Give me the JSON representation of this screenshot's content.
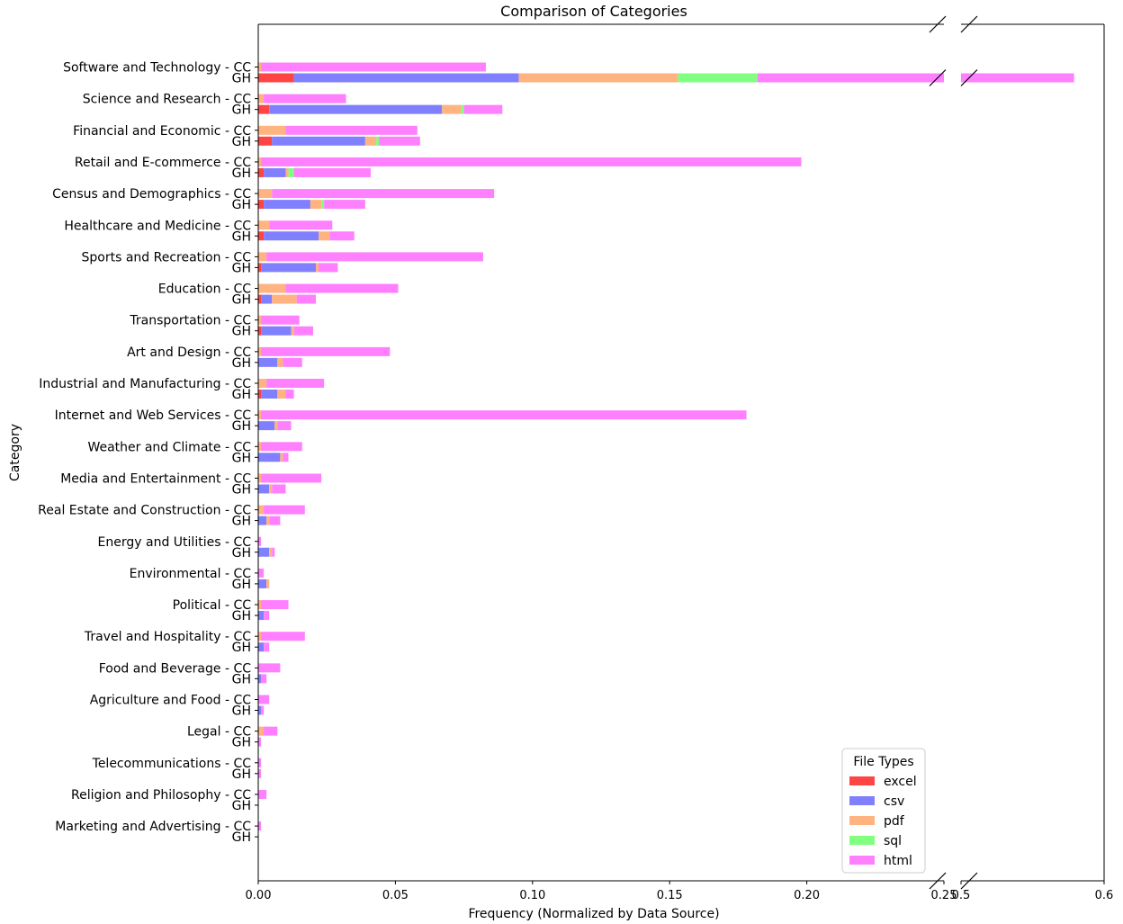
{
  "chart_data": {
    "type": "bar",
    "orientation": "horizontal",
    "stacked": true,
    "title": "Comparison of Categories",
    "xlabel": "Frequency (Normalized by Data Source)",
    "ylabel": "Category",
    "broken_x_axis": true,
    "xlim_left": [
      0,
      0.25
    ],
    "xlim_right": [
      0.5,
      0.6
    ],
    "xticks_left": [
      "0.00",
      "0.05",
      "0.10",
      "0.15",
      "0.20",
      "0.25"
    ],
    "xticks_right": [
      "0.5",
      "0.6"
    ],
    "legend": {
      "title": "File Types",
      "position": "lower-right"
    },
    "sources": [
      "CC",
      "GH"
    ],
    "series": [
      {
        "name": "excel",
        "color": "#ff4444"
      },
      {
        "name": "csv",
        "color": "#8080ff"
      },
      {
        "name": "pdf",
        "color": "#ffb380"
      },
      {
        "name": "sql",
        "color": "#80ff80"
      },
      {
        "name": "html",
        "color": "#ff80ff"
      }
    ],
    "categories": [
      {
        "name": "Software and Technology",
        "CC": [
          0,
          0,
          0.001,
          0,
          0.082
        ],
        "GH": [
          0.013,
          0.082,
          0.058,
          0.029,
          0.397
        ]
      },
      {
        "name": "Science and Research",
        "CC": [
          0,
          0,
          0.002,
          0,
          0.03
        ],
        "GH": [
          0.004,
          0.063,
          0.007,
          0.001,
          0.014
        ]
      },
      {
        "name": "Financial and Economic",
        "CC": [
          0,
          0,
          0.01,
          0,
          0.048
        ],
        "GH": [
          0.005,
          0.034,
          0.004,
          0.001,
          0.015
        ]
      },
      {
        "name": "Retail and E-commerce",
        "CC": [
          0,
          0,
          0.001,
          0,
          0.197
        ],
        "GH": [
          0.002,
          0.008,
          0.001,
          0.002,
          0.028
        ]
      },
      {
        "name": "Census and Demographics",
        "CC": [
          0,
          0,
          0.005,
          0,
          0.081
        ],
        "GH": [
          0.002,
          0.017,
          0.004,
          0.001,
          0.015
        ]
      },
      {
        "name": "Healthcare and Medicine",
        "CC": [
          0,
          0,
          0.004,
          0,
          0.023
        ],
        "GH": [
          0.002,
          0.02,
          0.004,
          0,
          0.009
        ]
      },
      {
        "name": "Sports and Recreation",
        "CC": [
          0,
          0,
          0.003,
          0,
          0.079
        ],
        "GH": [
          0.001,
          0.02,
          0.001,
          0,
          0.007
        ]
      },
      {
        "name": "Education",
        "CC": [
          0,
          0,
          0.01,
          0,
          0.041
        ],
        "GH": [
          0.001,
          0.004,
          0.009,
          0,
          0.007
        ]
      },
      {
        "name": "Transportation",
        "CC": [
          0,
          0,
          0.001,
          0,
          0.014
        ],
        "GH": [
          0.001,
          0.011,
          0.001,
          0,
          0.007
        ]
      },
      {
        "name": "Art and Design",
        "CC": [
          0,
          0,
          0.001,
          0,
          0.047
        ],
        "GH": [
          0,
          0.007,
          0.002,
          0,
          0.007
        ]
      },
      {
        "name": "Industrial and Manufacturing",
        "CC": [
          0,
          0,
          0.003,
          0,
          0.021
        ],
        "GH": [
          0.001,
          0.006,
          0.003,
          0,
          0.003
        ]
      },
      {
        "name": "Internet and Web Services",
        "CC": [
          0,
          0,
          0.001,
          0,
          0.177
        ],
        "GH": [
          0,
          0.006,
          0.001,
          0,
          0.005
        ]
      },
      {
        "name": "Weather and Climate",
        "CC": [
          0,
          0,
          0.001,
          0,
          0.015
        ],
        "GH": [
          0,
          0.008,
          0.001,
          0,
          0.002
        ]
      },
      {
        "name": "Media and Entertainment",
        "CC": [
          0,
          0,
          0.001,
          0,
          0.022
        ],
        "GH": [
          0,
          0.004,
          0.001,
          0,
          0.005
        ]
      },
      {
        "name": "Real Estate and Construction",
        "CC": [
          0,
          0,
          0.002,
          0,
          0.015
        ],
        "GH": [
          0,
          0.003,
          0.001,
          0,
          0.004
        ]
      },
      {
        "name": "Energy and Utilities",
        "CC": [
          0,
          0,
          0,
          0,
          0.001
        ],
        "GH": [
          0,
          0.004,
          0.001,
          0,
          0.001
        ]
      },
      {
        "name": "Environmental",
        "CC": [
          0,
          0,
          0,
          0,
          0.002
        ],
        "GH": [
          0,
          0.003,
          0.001,
          0,
          0
        ]
      },
      {
        "name": "Political",
        "CC": [
          0,
          0,
          0.001,
          0,
          0.01
        ],
        "GH": [
          0,
          0.002,
          0,
          0,
          0.002
        ]
      },
      {
        "name": "Travel and Hospitality",
        "CC": [
          0,
          0,
          0.001,
          0,
          0.016
        ],
        "GH": [
          0,
          0.002,
          0,
          0,
          0.002
        ]
      },
      {
        "name": "Food and Beverage",
        "CC": [
          0,
          0,
          0,
          0,
          0.008
        ],
        "GH": [
          0,
          0.001,
          0,
          0,
          0.002
        ]
      },
      {
        "name": "Agriculture and Food",
        "CC": [
          0,
          0,
          0,
          0,
          0.004
        ],
        "GH": [
          0,
          0.001,
          0,
          0,
          0.001
        ]
      },
      {
        "name": "Legal",
        "CC": [
          0,
          0,
          0.002,
          0,
          0.005
        ],
        "GH": [
          0,
          0,
          0,
          0,
          0.001
        ]
      },
      {
        "name": "Telecommunications",
        "CC": [
          0,
          0,
          0,
          0,
          0.001
        ],
        "GH": [
          0,
          0,
          0,
          0,
          0.001
        ]
      },
      {
        "name": "Religion and Philosophy",
        "CC": [
          0,
          0,
          0,
          0,
          0.003
        ],
        "GH": [
          0,
          0,
          0,
          0,
          0
        ]
      },
      {
        "name": "Marketing and Advertising",
        "CC": [
          0,
          0,
          0,
          0,
          0.001
        ],
        "GH": [
          0,
          0,
          0,
          0,
          0
        ]
      }
    ]
  }
}
